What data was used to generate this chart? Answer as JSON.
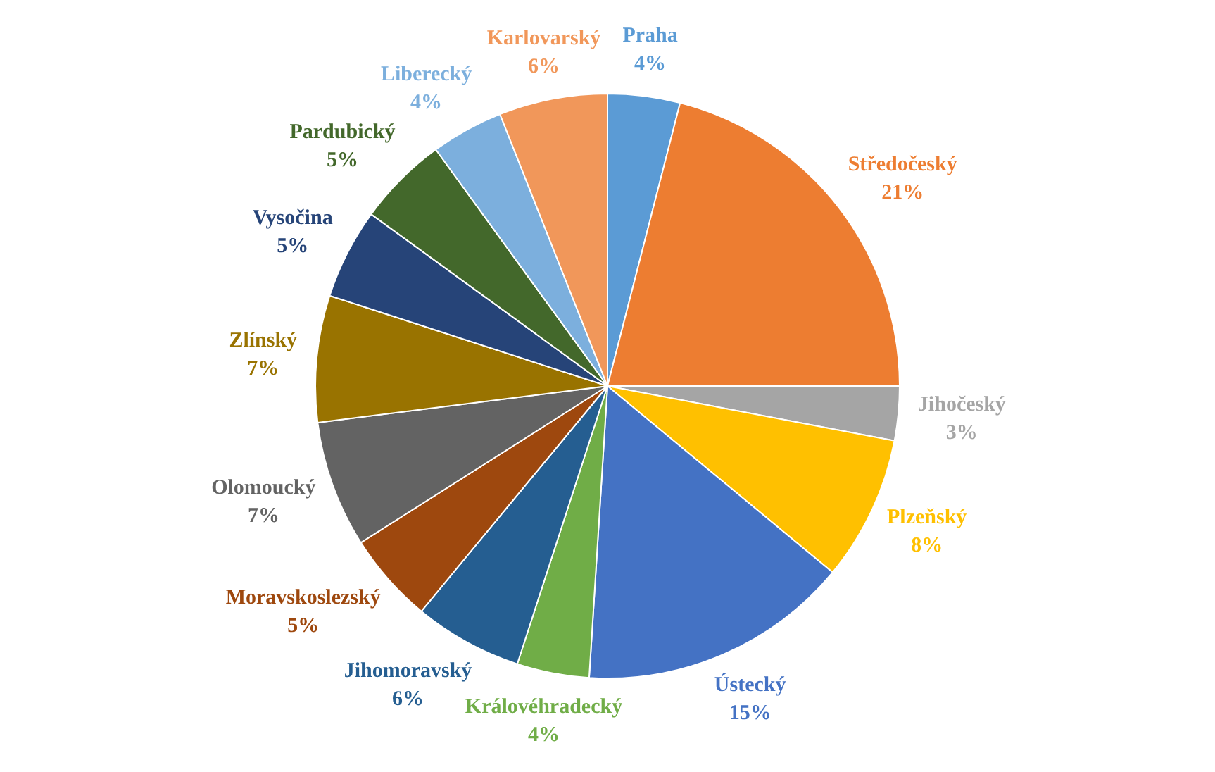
{
  "chart_data": {
    "type": "pie",
    "categories": [
      "Praha",
      "Středočeský",
      "Jihočeský",
      "Plzeňský",
      "Ústecký",
      "Královéhradecký",
      "Jihomoravský",
      "Moravskoslezský",
      "Olomoucký",
      "Zlínský",
      "Vysočina",
      "Pardubický",
      "Liberecký",
      "Karlovarský"
    ],
    "values": [
      4,
      21,
      3,
      8,
      15,
      4,
      6,
      5,
      7,
      7,
      5,
      5,
      4,
      6
    ],
    "colors": [
      "#5b9bd5",
      "#ed7d31",
      "#a5a5a5",
      "#ffc000",
      "#4472c4",
      "#70ad47",
      "#255e91",
      "#9e480e",
      "#636363",
      "#997300",
      "#264478",
      "#43682b",
      "#7cafdd",
      "#f1975a"
    ],
    "value_labels": [
      "4%",
      "21%",
      "3%",
      "8%",
      "15%",
      "4%",
      "6%",
      "5%",
      "7%",
      "7%",
      "5%",
      "5%",
      "4%",
      "6%"
    ],
    "legend": false
  }
}
